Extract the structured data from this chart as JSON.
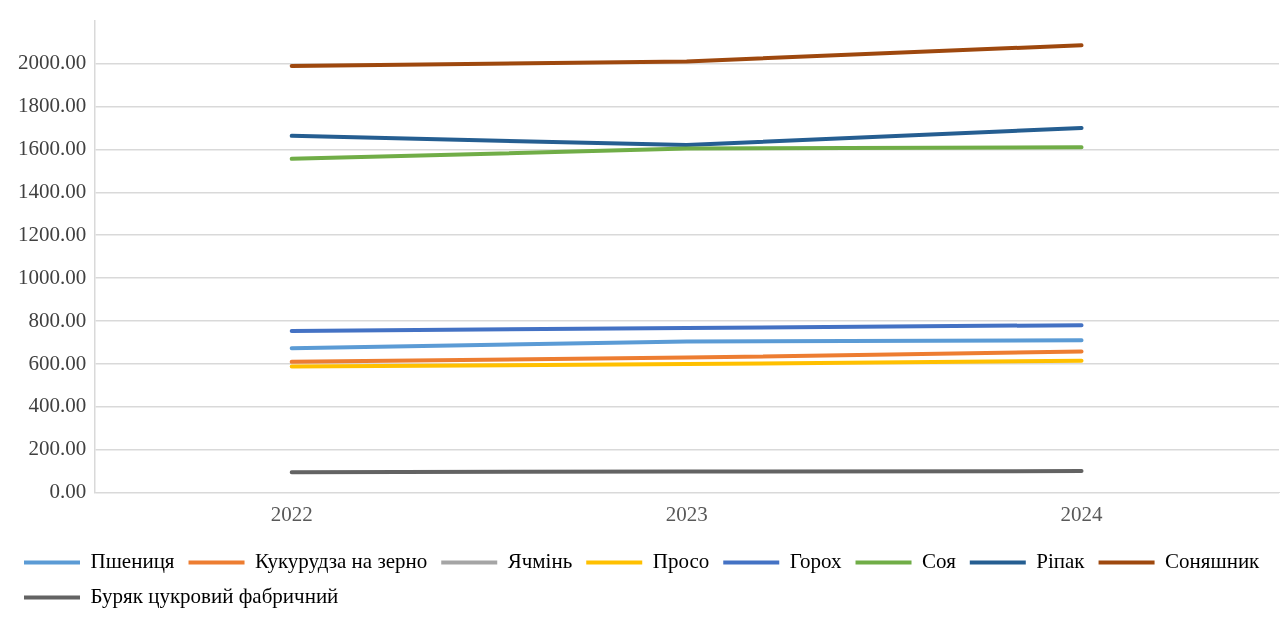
{
  "chart_data": {
    "type": "line",
    "categories": [
      "2022",
      "2023",
      "2024"
    ],
    "series": [
      {
        "name": "Пшениця",
        "color": "#5b9bd5",
        "values": [
          674,
          705,
          711
        ]
      },
      {
        "name": "Кукурудза на зерно",
        "color": "#ed7d31",
        "values": [
          610,
          630,
          658
        ]
      },
      {
        "name": "Ячмінь",
        "color": "#a5a5a5",
        "values": [
          null,
          null,
          null
        ]
      },
      {
        "name": "Просо",
        "color": "#ffc000",
        "values": [
          588,
          600,
          615
        ]
      },
      {
        "name": "Горох",
        "color": "#4472c4",
        "values": [
          754,
          768,
          781
        ]
      },
      {
        "name": "Соя",
        "color": "#70ad47",
        "values": [
          1556,
          1604,
          1610
        ]
      },
      {
        "name": "Ріпак",
        "color": "#255e91",
        "values": [
          1663,
          1620,
          1700
        ]
      },
      {
        "name": "Соняшник",
        "color": "#9e480e",
        "values": [
          1989,
          2010,
          2085
        ]
      },
      {
        "name": "Буряк цукровий фабричний",
        "color": "#636363",
        "values": [
          96,
          99,
          101
        ]
      }
    ],
    "ylim": [
      0,
      2200
    ],
    "yticks": [
      {
        "value": 0,
        "label": "0.00"
      },
      {
        "value": 200,
        "label": "200.00"
      },
      {
        "value": 400,
        "label": "400.00"
      },
      {
        "value": 600,
        "label": "600.00"
      },
      {
        "value": 800,
        "label": "800.00"
      },
      {
        "value": 1000,
        "label": "1000.00"
      },
      {
        "value": 1200,
        "label": "1200.00"
      },
      {
        "value": 1400,
        "label": "1400.00"
      },
      {
        "value": 1600,
        "label": "1600.00"
      },
      {
        "value": 1800,
        "label": "1800.00"
      },
      {
        "value": 2000,
        "label": "2000.00"
      }
    ],
    "grid": "y",
    "legend": "bottom",
    "marker": "none",
    "line_style": "solid"
  }
}
